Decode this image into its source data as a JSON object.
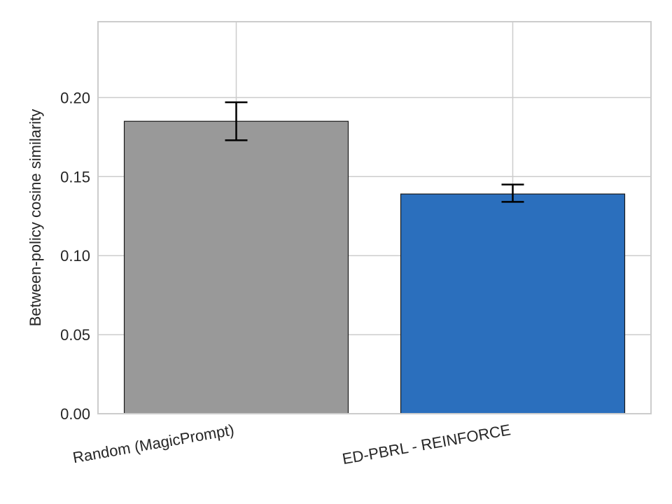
{
  "chart_data": {
    "type": "bar",
    "title": "",
    "xlabel": "",
    "ylabel": "Between-policy cosine similarity",
    "categories": [
      "Random (MagicPrompt)",
      "ED-PBRL - REINFORCE"
    ],
    "values": [
      0.185,
      0.139
    ],
    "errors": [
      {
        "low": 0.173,
        "high": 0.197
      },
      {
        "low": 0.134,
        "high": 0.145
      }
    ],
    "colors": [
      "#999999",
      "#2b6fbd"
    ],
    "ylim": [
      0,
      0.248
    ],
    "yticks": [
      {
        "value": 0.0,
        "label": "0.00"
      },
      {
        "value": 0.05,
        "label": "0.05"
      },
      {
        "value": 0.1,
        "label": "0.10"
      },
      {
        "value": 0.15,
        "label": "0.15"
      },
      {
        "value": 0.2,
        "label": "0.20"
      }
    ],
    "grid": true,
    "legend": "none"
  }
}
